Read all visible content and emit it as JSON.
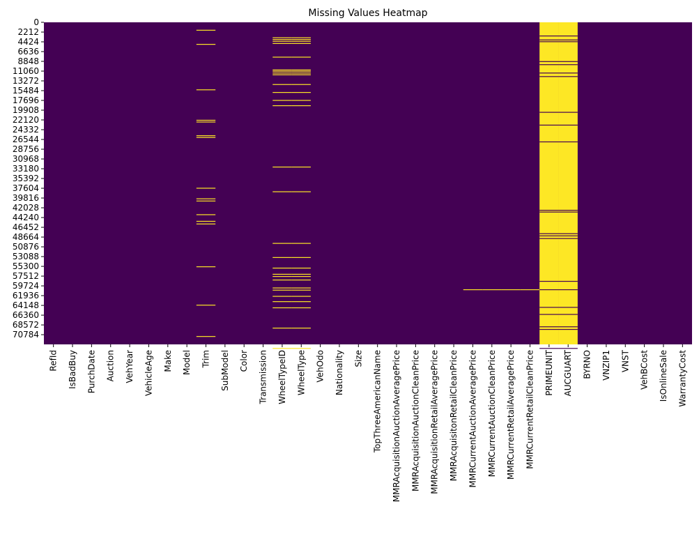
{
  "chart_data": {
    "type": "heatmap",
    "title": "Missing Values Heatmap",
    "xlabel": "",
    "ylabel": "",
    "legend": "none",
    "grid": false,
    "n_rows": 72983,
    "colors": {
      "present": "#440154",
      "missing": "#fde725"
    },
    "y_ticks": [
      0,
      2212,
      4424,
      6636,
      8848,
      11060,
      13272,
      15484,
      17696,
      19908,
      22120,
      24332,
      26544,
      28756,
      30968,
      33180,
      35392,
      37604,
      39816,
      42028,
      44240,
      46452,
      48664,
      50876,
      53088,
      55300,
      57512,
      59724,
      61936,
      64148,
      66360,
      68572,
      70784
    ],
    "columns": [
      "RefId",
      "IsBadBuy",
      "PurchDate",
      "Auction",
      "VehYear",
      "VehicleAge",
      "Make",
      "Model",
      "Trim",
      "SubModel",
      "Color",
      "Transmission",
      "WheelTypeID",
      "WheelType",
      "VehOdo",
      "Nationality",
      "Size",
      "TopThreeAmericanName",
      "MMRAcquisitionAuctionAveragePrice",
      "MMRAcquisitionAuctionCleanPrice",
      "MMRAcquisitionRetailAveragePrice",
      "MMRAcquisitonRetailCleanPrice",
      "MMRCurrentAuctionAveragePrice",
      "MMRCurrentAuctionCleanPrice",
      "MMRCurrentRetailAveragePrice",
      "MMRCurrentRetailCleanPrice",
      "PRIMEUNIT",
      "AUCGUART",
      "BYRNO",
      "VNZIP1",
      "VNST",
      "VehBCost",
      "IsOnlineSale",
      "WarrantyCost"
    ],
    "missing_rows": {
      "Trim": [
        1700,
        4900,
        15200,
        22100,
        22500,
        25600,
        26000,
        37500,
        39900,
        40400,
        43500,
        45000,
        45600,
        55300,
        64000,
        71100
      ],
      "WheelTypeID": [
        3400,
        3800,
        4200,
        4700,
        7800,
        10700,
        11000,
        11400,
        11800,
        14000,
        15800,
        17600,
        18800,
        32700,
        38300,
        50000,
        53200,
        55600,
        57000,
        57500,
        58300,
        60100,
        60600,
        62000,
        63200,
        64600,
        69200,
        73800
      ],
      "WheelType": [
        3400,
        3800,
        4200,
        4700,
        7800,
        10700,
        11000,
        11400,
        11800,
        14000,
        15800,
        17600,
        18800,
        32700,
        38300,
        50000,
        53200,
        55600,
        57000,
        57500,
        58300,
        60100,
        60600,
        62000,
        63200,
        64600,
        69200,
        73800
      ],
      "MMRCurrentAuctionAveragePrice": [
        60500
      ],
      "MMRCurrentAuctionCleanPrice": [
        60500
      ],
      "MMRCurrentRetailAveragePrice": [
        60500
      ],
      "MMRCurrentRetailCleanPrice": [
        60500
      ]
    },
    "mostly_missing_present_rows": {
      "PRIMEUNIT": [
        3000,
        3900,
        4300,
        8800,
        9500,
        11400,
        12200,
        20300,
        23200,
        27000,
        42500,
        42900,
        47800,
        48300,
        48900,
        58600,
        60500,
        64500,
        66100,
        68900,
        69500,
        73800
      ],
      "AUCGUART": [
        3000,
        3900,
        4300,
        8800,
        9500,
        11400,
        12200,
        20300,
        23200,
        27000,
        42500,
        42900,
        47800,
        48300,
        48900,
        58600,
        60500,
        64500,
        66100,
        68900,
        69500,
        73800
      ]
    }
  }
}
